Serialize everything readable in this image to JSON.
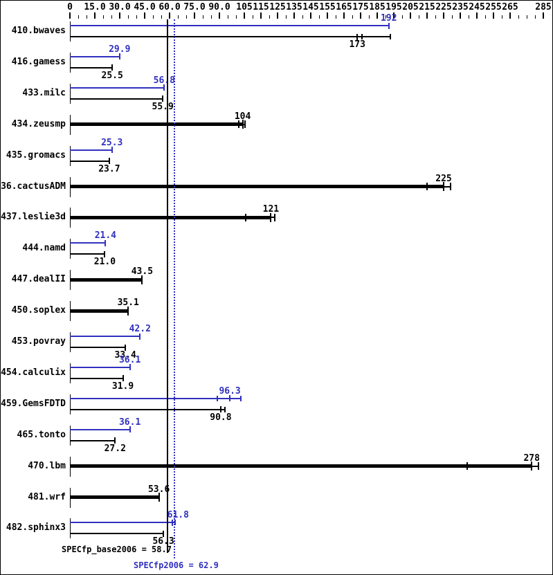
{
  "colors": {
    "peak": "#3030c0",
    "base": "#000000",
    "background": "#ffffff"
  },
  "axis": {
    "major_ticks": [
      {
        "v": 0,
        "label": "0"
      },
      {
        "v": 15,
        "label": "15.0"
      },
      {
        "v": 30,
        "label": "30.0"
      },
      {
        "v": 45,
        "label": "45.0"
      },
      {
        "v": 60,
        "label": "60.0"
      },
      {
        "v": 75,
        "label": "75.0"
      },
      {
        "v": 90,
        "label": "90.0"
      },
      {
        "v": 105,
        "label": "105"
      },
      {
        "v": 115,
        "label": "115"
      },
      {
        "v": 125,
        "label": "125"
      },
      {
        "v": 135,
        "label": "135"
      },
      {
        "v": 145,
        "label": "145"
      },
      {
        "v": 155,
        "label": "155"
      },
      {
        "v": 165,
        "label": "165"
      },
      {
        "v": 175,
        "label": "175"
      },
      {
        "v": 185,
        "label": "185"
      },
      {
        "v": 195,
        "label": "195"
      },
      {
        "v": 205,
        "label": "205"
      },
      {
        "v": 215,
        "label": "215"
      },
      {
        "v": 225,
        "label": "225"
      },
      {
        "v": 235,
        "label": "235"
      },
      {
        "v": 245,
        "label": "245"
      },
      {
        "v": 255,
        "label": "255"
      },
      {
        "v": 265,
        "label": "265"
      },
      {
        "v": 285,
        "label": "285"
      }
    ],
    "minor_step": 5,
    "min": 0,
    "max": 285
  },
  "reference_lines": {
    "base": {
      "value": 58.7,
      "label": "SPECfp_base2006 = 58.7",
      "style": "solid"
    },
    "peak": {
      "value": 62.9,
      "label": "SPECfp2006 = 62.9",
      "style": "dotted"
    }
  },
  "rows": [
    {
      "name": "410.bwaves",
      "type": "pair",
      "peak": {
        "value": 192,
        "label": "192",
        "runs": []
      },
      "base": {
        "value": 173,
        "label": "173",
        "runs": [
          176,
          193
        ]
      }
    },
    {
      "name": "416.gamess",
      "type": "pair",
      "peak": {
        "value": 29.9,
        "label": "29.9",
        "runs": []
      },
      "base": {
        "value": 25.5,
        "label": "25.5",
        "runs": []
      }
    },
    {
      "name": "433.milc",
      "type": "pair",
      "peak": {
        "value": 56.8,
        "label": "56.8",
        "runs": []
      },
      "base": {
        "value": 55.9,
        "label": "55.9",
        "runs": []
      }
    },
    {
      "name": "434.zeusmp",
      "type": "single",
      "base": {
        "value": 104,
        "label": "104",
        "runs": [
          101.5,
          105.5
        ]
      }
    },
    {
      "name": "435.gromacs",
      "type": "pair",
      "peak": {
        "value": 25.3,
        "label": "25.3",
        "runs": []
      },
      "base": {
        "value": 23.7,
        "label": "23.7",
        "runs": []
      }
    },
    {
      "name": "436.cactusADM",
      "type": "single",
      "base": {
        "value": 225,
        "label": "225",
        "runs": [
          215,
          229
        ]
      }
    },
    {
      "name": "437.leslie3d",
      "type": "single",
      "base": {
        "value": 121,
        "label": "121",
        "runs": [
          106,
          123.5
        ]
      }
    },
    {
      "name": "444.namd",
      "type": "pair",
      "peak": {
        "value": 21.4,
        "label": "21.4",
        "runs": []
      },
      "base": {
        "value": 21.0,
        "label": "21.0",
        "runs": []
      }
    },
    {
      "name": "447.dealII",
      "type": "single",
      "base": {
        "value": 43.5,
        "label": "43.5",
        "runs": []
      }
    },
    {
      "name": "450.soplex",
      "type": "single",
      "base": {
        "value": 35.1,
        "label": "35.1",
        "runs": []
      }
    },
    {
      "name": "453.povray",
      "type": "pair",
      "peak": {
        "value": 42.2,
        "label": "42.2",
        "runs": []
      },
      "base": {
        "value": 33.4,
        "label": "33.4",
        "runs": []
      }
    },
    {
      "name": "454.calculix",
      "type": "pair",
      "peak": {
        "value": 36.1,
        "label": "36.1",
        "runs": []
      },
      "base": {
        "value": 31.9,
        "label": "31.9",
        "runs": []
      }
    },
    {
      "name": "459.GemsFDTD",
      "type": "pair",
      "peak": {
        "value": 96.3,
        "label": "96.3",
        "runs": [
          88.8,
          103
        ]
      },
      "base": {
        "value": 90.8,
        "label": "90.8",
        "runs": [
          93.5
        ]
      }
    },
    {
      "name": "465.tonto",
      "type": "pair",
      "peak": {
        "value": 36.1,
        "label": "36.1",
        "runs": []
      },
      "base": {
        "value": 27.2,
        "label": "27.2",
        "runs": []
      }
    },
    {
      "name": "470.lbm",
      "type": "single",
      "base": {
        "value": 278,
        "label": "278",
        "runs": [
          239,
          282
        ]
      }
    },
    {
      "name": "481.wrf",
      "type": "single",
      "base": {
        "value": 53.6,
        "label": "53.6",
        "runs": []
      }
    },
    {
      "name": "482.sphinx3",
      "type": "pair",
      "peak": {
        "value": 61.8,
        "label": "61.8",
        "runs": [
          63.5
        ],
        "label_dx": 8
      },
      "base": {
        "value": 56.3,
        "label": "56.3",
        "runs": []
      }
    }
  ],
  "chart_data": {
    "type": "bar",
    "orientation": "horizontal",
    "categories": [
      "410.bwaves",
      "416.gamess",
      "433.milc",
      "434.zeusmp",
      "435.gromacs",
      "436.cactusADM",
      "437.leslie3d",
      "444.namd",
      "447.dealII",
      "450.soplex",
      "453.povray",
      "454.calculix",
      "459.GemsFDTD",
      "465.tonto",
      "470.lbm",
      "481.wrf",
      "482.sphinx3"
    ],
    "series": [
      {
        "name": "peak (SPECfp2006)",
        "color": "#3030c0",
        "values": [
          192,
          29.9,
          56.8,
          null,
          25.3,
          null,
          null,
          21.4,
          null,
          null,
          42.2,
          36.1,
          96.3,
          36.1,
          null,
          null,
          61.8
        ]
      },
      {
        "name": "base (SPECfp_base2006)",
        "color": "#000000",
        "values": [
          173,
          25.5,
          55.9,
          104,
          23.7,
          225,
          121,
          21.0,
          43.5,
          35.1,
          33.4,
          31.9,
          90.8,
          27.2,
          278,
          53.6,
          56.3
        ]
      }
    ],
    "means": {
      "SPECfp_base2006": 58.7,
      "SPECfp2006": 62.9
    },
    "xlim": [
      0,
      285
    ],
    "x_tick_minor_step": 5,
    "grid": false,
    "legend_position": "none"
  }
}
